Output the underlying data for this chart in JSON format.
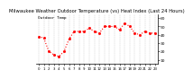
{
  "title": "Milwaukee Weather Outdoor Temperature (vs) Heat Index (Last 24 Hours)",
  "title_fontsize": 3.8,
  "background_color": "#ffffff",
  "line_color": "#ff0000",
  "line_style": "dotted",
  "line_width": 0.8,
  "marker": "s",
  "marker_size": 1.0,
  "grid_color": "#aaaaaa",
  "grid_style": "--",
  "x_values": [
    0,
    1,
    2,
    3,
    4,
    5,
    6,
    7,
    8,
    9,
    10,
    11,
    12,
    13,
    14,
    15,
    16,
    17,
    18,
    19,
    20,
    21,
    22,
    23
  ],
  "y_values": [
    38,
    36,
    20,
    16,
    14,
    20,
    35,
    44,
    44,
    44,
    48,
    44,
    42,
    50,
    50,
    50,
    46,
    54,
    50,
    42,
    40,
    44,
    42,
    42
  ],
  "ylim": [
    5,
    65
  ],
  "yticks": [
    10,
    20,
    30,
    40,
    50,
    60
  ],
  "ytick_labels": [
    "10",
    "20",
    "30",
    "40",
    "50",
    "60"
  ],
  "ytick_fontsize": 3.2,
  "xtick_fontsize": 2.8,
  "legend_text": "Outdoor Temp",
  "legend_fontsize": 3.2,
  "right_axis_color": "#000000"
}
